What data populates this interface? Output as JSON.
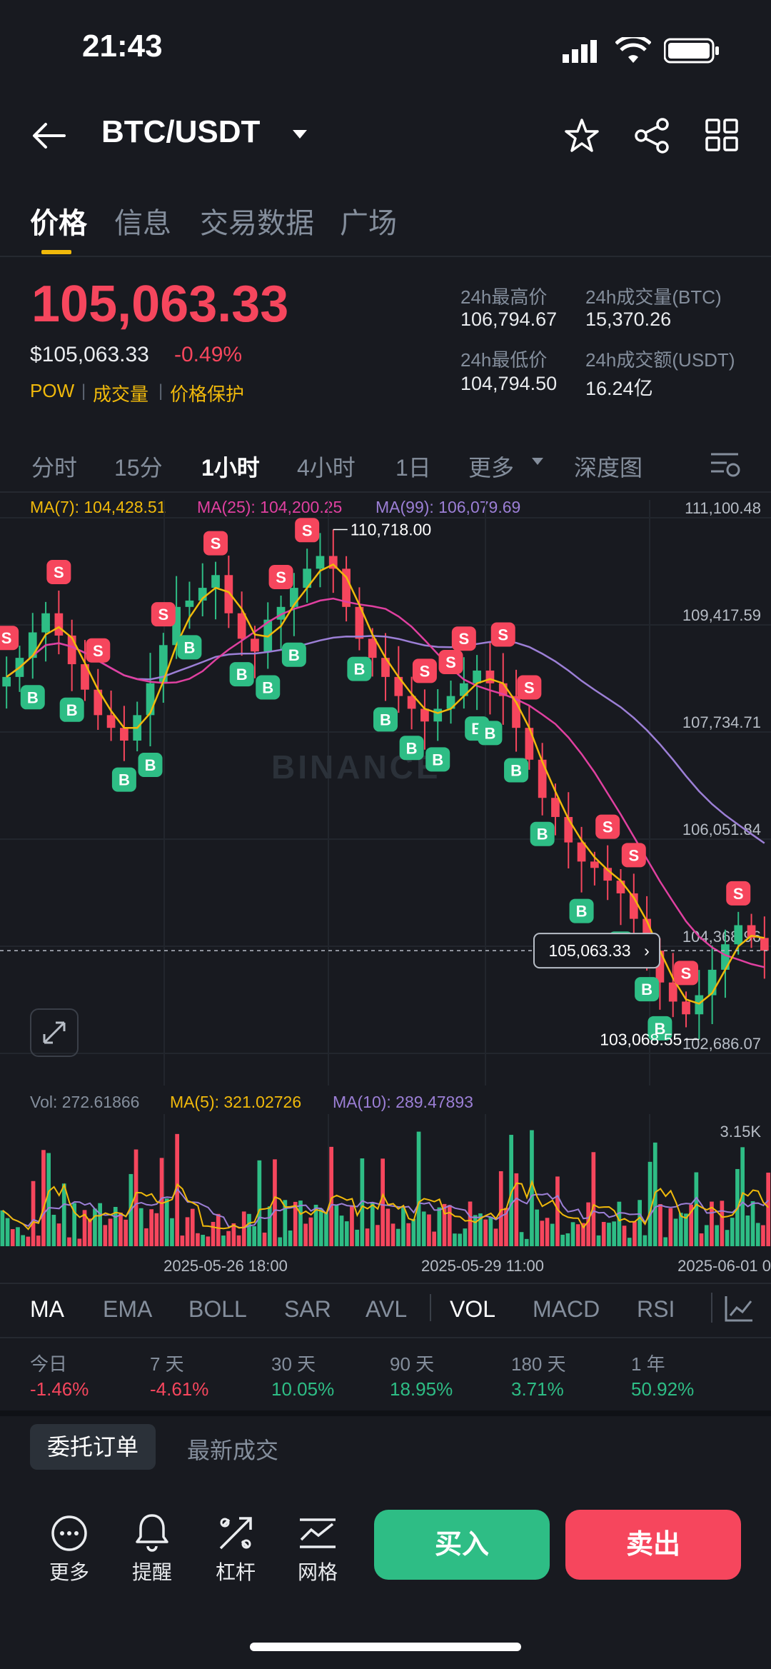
{
  "status": {
    "time": "21:43"
  },
  "header": {
    "pair": "BTC/USDT"
  },
  "tabs": [
    {
      "label": "价格",
      "active": true
    },
    {
      "label": "信息",
      "active": false
    },
    {
      "label": "交易数据",
      "active": false
    },
    {
      "label": "广场",
      "active": false
    }
  ],
  "price": {
    "last": "105,063.33",
    "usd": "$105,063.33",
    "change": "-0.49%",
    "tags": [
      "POW",
      "成交量",
      "价格保护"
    ]
  },
  "stats": {
    "high_label": "24h最高价",
    "high_value": "106,794.67",
    "low_label": "24h最低价",
    "low_value": "104,794.50",
    "vol_btc_label": "24h成交量(BTC)",
    "vol_btc_value": "15,370.26",
    "vol_usdt_label": "24h成交额(USDT)",
    "vol_usdt_value": "16.24亿"
  },
  "intervals": [
    {
      "label": "分时",
      "active": false
    },
    {
      "label": "15分",
      "active": false
    },
    {
      "label": "1小时",
      "active": true
    },
    {
      "label": "4小时",
      "active": false
    },
    {
      "label": "1日",
      "active": false
    },
    {
      "label": "更多",
      "active": false
    },
    {
      "label": "深度图",
      "active": false
    }
  ],
  "ma_legend": {
    "ma7": "MA(7): 104,428.51",
    "ma25": "MA(25): 104,200.25",
    "ma99": "MA(99): 106,079.69"
  },
  "vol_legend": {
    "vol": "Vol: 272.61866",
    "ma5": "MA(5): 321.02726",
    "ma10": "MA(10): 289.47893"
  },
  "chart_data": {
    "type": "candlestick",
    "pair": "BTC/USDT",
    "interval": "1小时",
    "watermark": "BINANCE",
    "price_axis_ticks": [
      "111,100.48",
      "109,417.59",
      "107,734.71",
      "106,051.84",
      "104,368.96",
      "102,686.07"
    ],
    "ylim": [
      102686.07,
      111100.48
    ],
    "current_price_label": "105,063.33",
    "max_label": "110,718.00",
    "min_label": "103,068.55",
    "volume_axis_tick": "3.15K",
    "x_ticks": [
      "2025-05-26 18:00",
      "2025-05-29 11:00",
      "2025-06-01 0"
    ],
    "close_series": [
      108600,
      108900,
      109300,
      109600,
      109250,
      108800,
      108400,
      108000,
      107800,
      107600,
      108000,
      108500,
      109100,
      109700,
      109800,
      110000,
      110200,
      109600,
      109200,
      109000,
      109500,
      109700,
      110000,
      110300,
      110500,
      110300,
      109700,
      109200,
      108900,
      108600,
      108300,
      108100,
      107900,
      108100,
      108300,
      108500,
      108700,
      108500,
      108300,
      107800,
      107300,
      106700,
      106400,
      106000,
      105700,
      105600,
      105400,
      105200,
      104800,
      104300,
      103800,
      103500,
      103300,
      103600,
      104000,
      104400,
      104700,
      104500,
      104300
    ],
    "markers": {
      "buy_label": "B",
      "sell_label": "S"
    },
    "colors": {
      "up": "#2ebd85",
      "down": "#f6465d",
      "ma7": "#f0b90b",
      "ma25": "#e040a0",
      "ma99": "#9c7fd6"
    }
  },
  "indicators": [
    {
      "label": "MA",
      "active": true
    },
    {
      "label": "EMA",
      "active": false
    },
    {
      "label": "BOLL",
      "active": false
    },
    {
      "label": "SAR",
      "active": false
    },
    {
      "label": "AVL",
      "active": false
    },
    {
      "label": "VOL",
      "active": true
    },
    {
      "label": "MACD",
      "active": false
    },
    {
      "label": "RSI",
      "active": false
    }
  ],
  "performance": [
    {
      "label": "今日",
      "value": "-1.46%",
      "dir": "down"
    },
    {
      "label": "7 天",
      "value": "-4.61%",
      "dir": "down"
    },
    {
      "label": "30 天",
      "value": "10.05%",
      "dir": "up"
    },
    {
      "label": "90 天",
      "value": "18.95%",
      "dir": "up"
    },
    {
      "label": "180 天",
      "value": "3.71%",
      "dir": "up"
    },
    {
      "label": "1 年",
      "value": "50.92%",
      "dir": "up"
    }
  ],
  "orders": {
    "tab_active": "委托订单",
    "tab_other": "最新成交"
  },
  "bottom": {
    "more": "更多",
    "alert": "提醒",
    "leverage": "杠杆",
    "grid": "网格",
    "buy": "买入",
    "sell": "卖出"
  }
}
